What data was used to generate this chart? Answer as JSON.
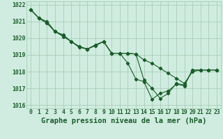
{
  "title": "Graphe pression niveau de la mer (hPa)",
  "background_color": "#d0ece0",
  "grid_color": "#a0c8b0",
  "line_color": "#1a5c2a",
  "line1": [
    1021.7,
    1021.2,
    1021.0,
    1020.4,
    1020.1,
    1019.8,
    1019.5,
    1019.35,
    1019.6,
    1019.8,
    1019.1,
    1019.1,
    1019.1,
    1019.05,
    1017.5,
    1017.0,
    1016.4,
    1016.7,
    1017.3,
    1017.2,
    1018.1,
    1018.1,
    1018.1,
    1018.1
  ],
  "line2": [
    1021.7,
    1021.2,
    1020.9,
    1020.4,
    1020.2,
    1019.8,
    1019.5,
    1019.35,
    1019.6,
    1019.8,
    1019.1,
    1019.1,
    1019.1,
    1019.05,
    1018.7,
    1018.5,
    1018.2,
    1017.9,
    1017.6,
    1017.3,
    1018.0,
    1018.1,
    1018.1,
    1018.1
  ],
  "line3": [
    1021.7,
    1021.2,
    1020.9,
    1020.4,
    1020.15,
    1019.8,
    1019.45,
    1019.35,
    1019.55,
    1019.8,
    1019.1,
    1019.1,
    1018.5,
    1017.55,
    1017.4,
    1016.35,
    1016.7,
    1016.85,
    1017.25,
    1017.15,
    1018.1,
    1018.1,
    1018.1,
    1018.1
  ],
  "x_labels": [
    "0",
    "1",
    "2",
    "3",
    "4",
    "5",
    "6",
    "7",
    "8",
    "9",
    "10",
    "11",
    "12",
    "13",
    "14",
    "15",
    "16",
    "17",
    "18",
    "19",
    "20",
    "21",
    "22",
    "23"
  ],
  "ylim": [
    1015.8,
    1022.2
  ],
  "yticks": [
    1016,
    1017,
    1018,
    1019,
    1020,
    1021,
    1022
  ],
  "title_fontsize": 7.5,
  "tick_fontsize": 5.8,
  "marker_size": 2.2,
  "linewidth": 0.8
}
